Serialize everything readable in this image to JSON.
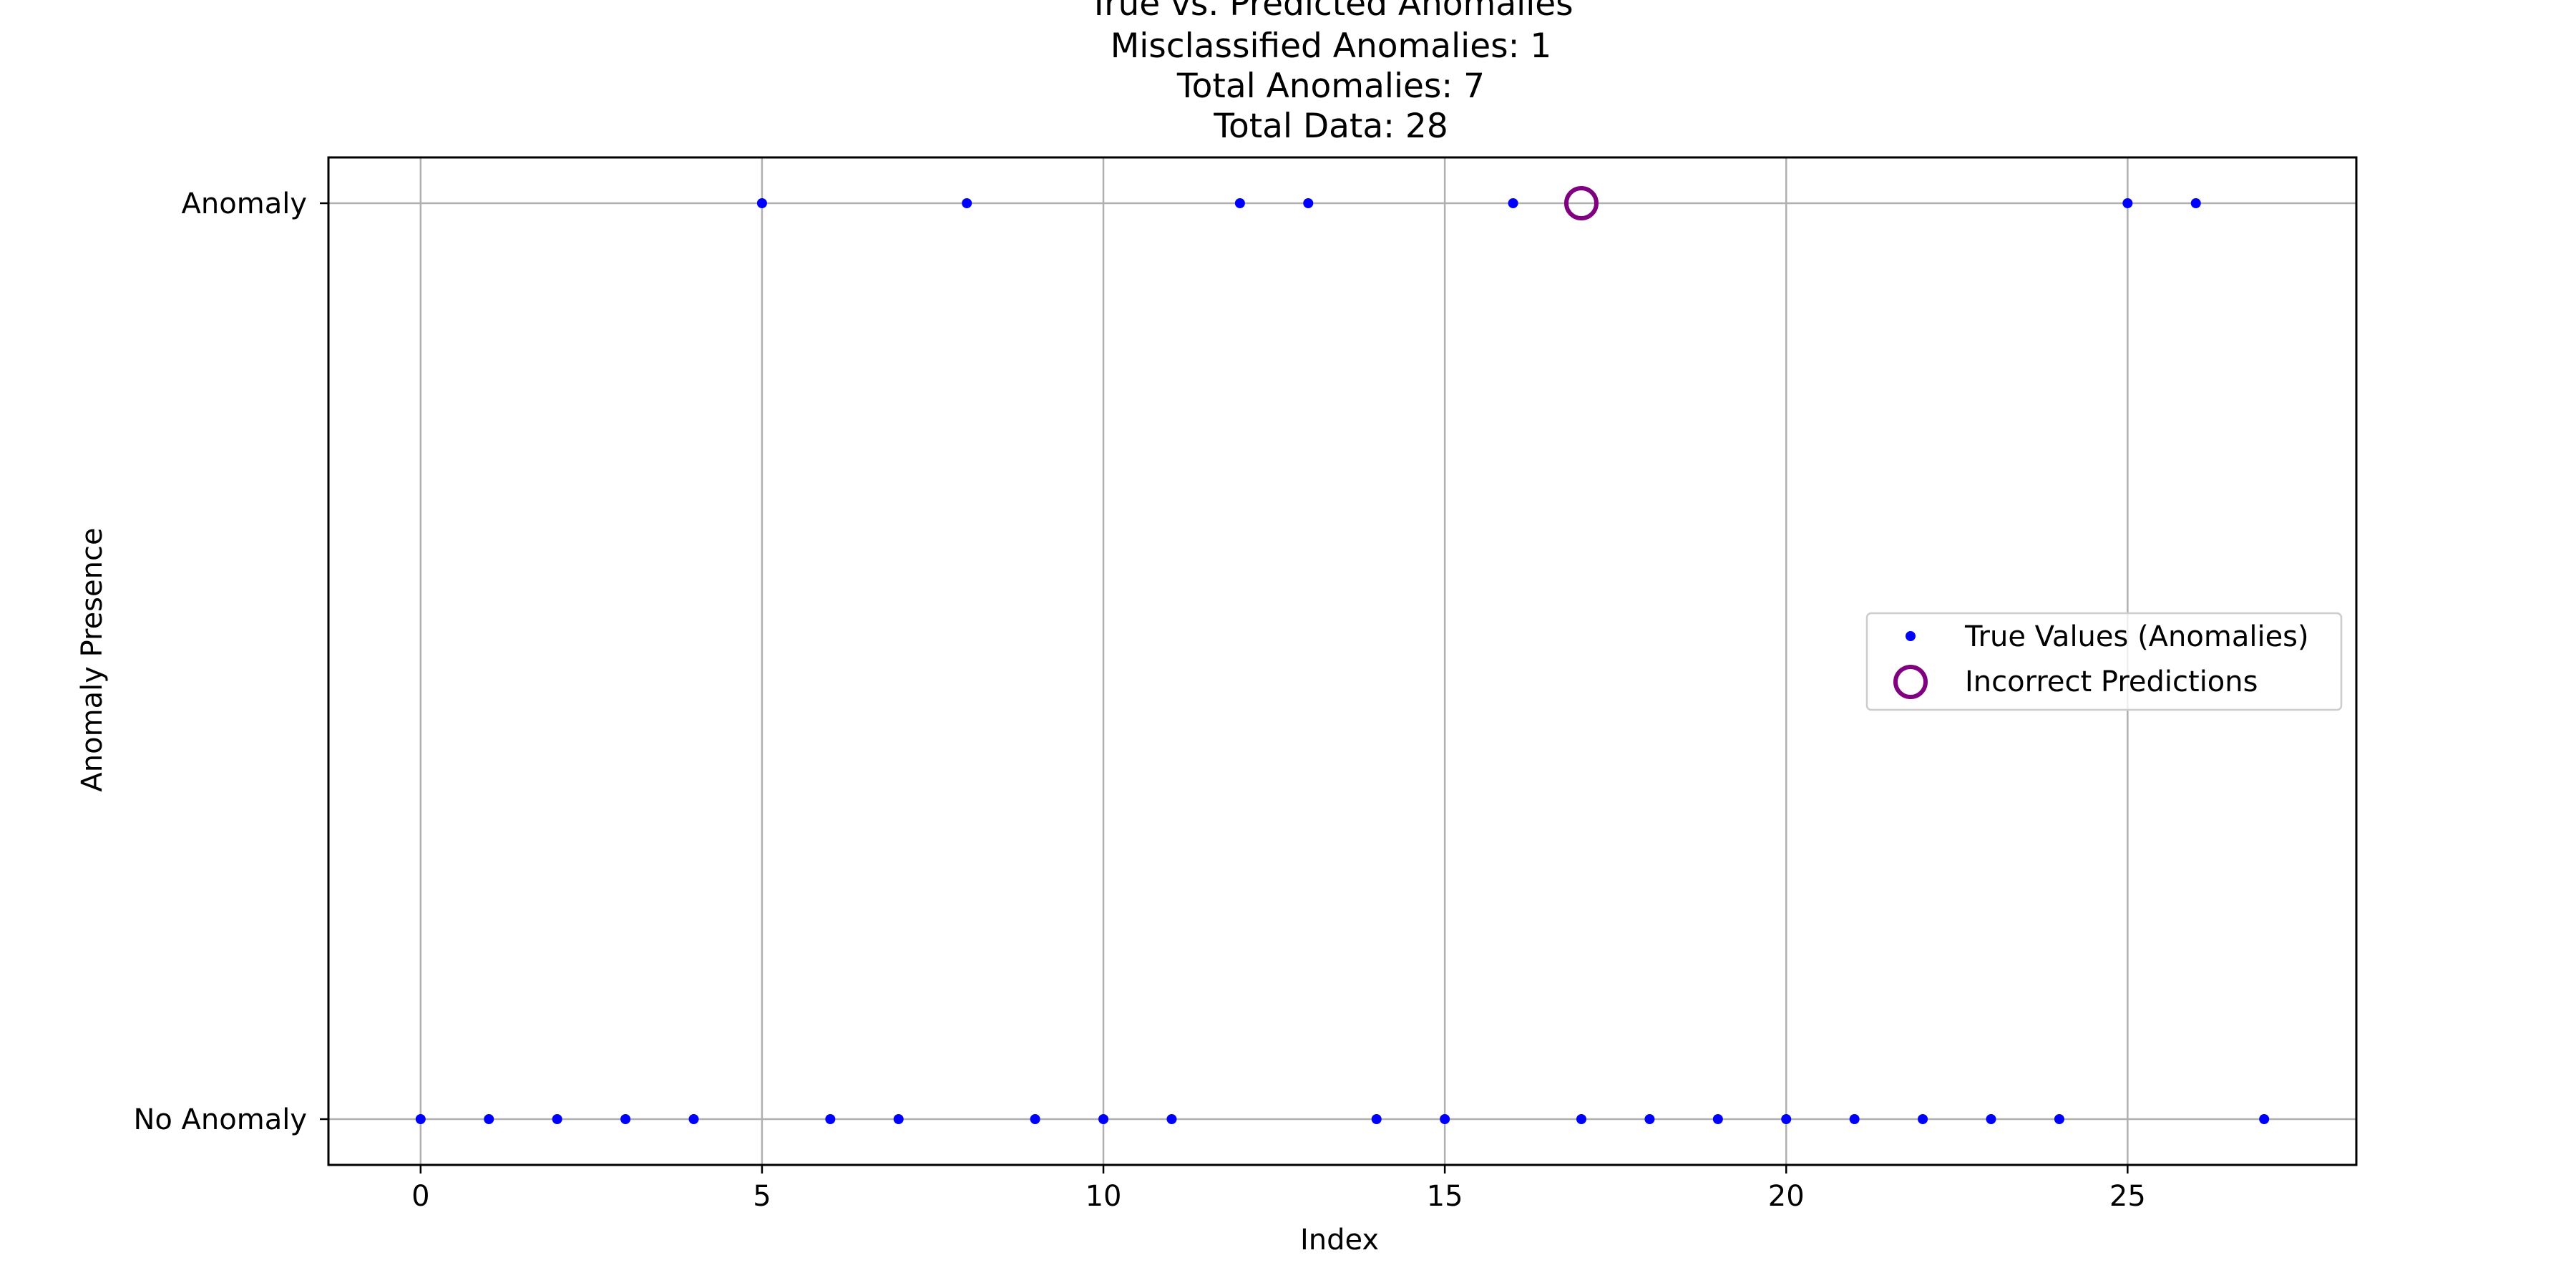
{
  "chart_data": {
    "type": "scatter",
    "title_lines": [
      "True vs. Predicted Anomalies",
      "Misclassified Anomalies: 1",
      "Total Anomalies: 7",
      "Total Data: 28"
    ],
    "xlabel": "Index",
    "ylabel": "Anomaly Presence",
    "xlim": [
      -1.35,
      28.35
    ],
    "ylim": [
      -0.05,
      1.05
    ],
    "x_ticks": [
      0,
      5,
      10,
      15,
      20,
      25
    ],
    "y_ticks": [
      0,
      1
    ],
    "y_tick_labels": [
      "No Anomaly",
      "Anomaly"
    ],
    "grid": true,
    "legend_location": "center right",
    "series": [
      {
        "name": "True Values (Anomalies)",
        "marker": "dot",
        "color": "#0000ff",
        "x": [
          0,
          1,
          2,
          3,
          4,
          5,
          6,
          7,
          8,
          9,
          10,
          11,
          12,
          13,
          14,
          15,
          16,
          17,
          18,
          19,
          20,
          21,
          22,
          23,
          24,
          25,
          26,
          27
        ],
        "y": [
          0,
          0,
          0,
          0,
          0,
          1,
          0,
          0,
          1,
          0,
          0,
          0,
          1,
          1,
          0,
          0,
          1,
          0,
          0,
          0,
          0,
          0,
          0,
          0,
          0,
          1,
          1,
          0
        ]
      },
      {
        "name": "Incorrect Predictions",
        "marker": "open-circle",
        "color": "#800080",
        "x": [
          17
        ],
        "y": [
          1
        ]
      }
    ]
  }
}
